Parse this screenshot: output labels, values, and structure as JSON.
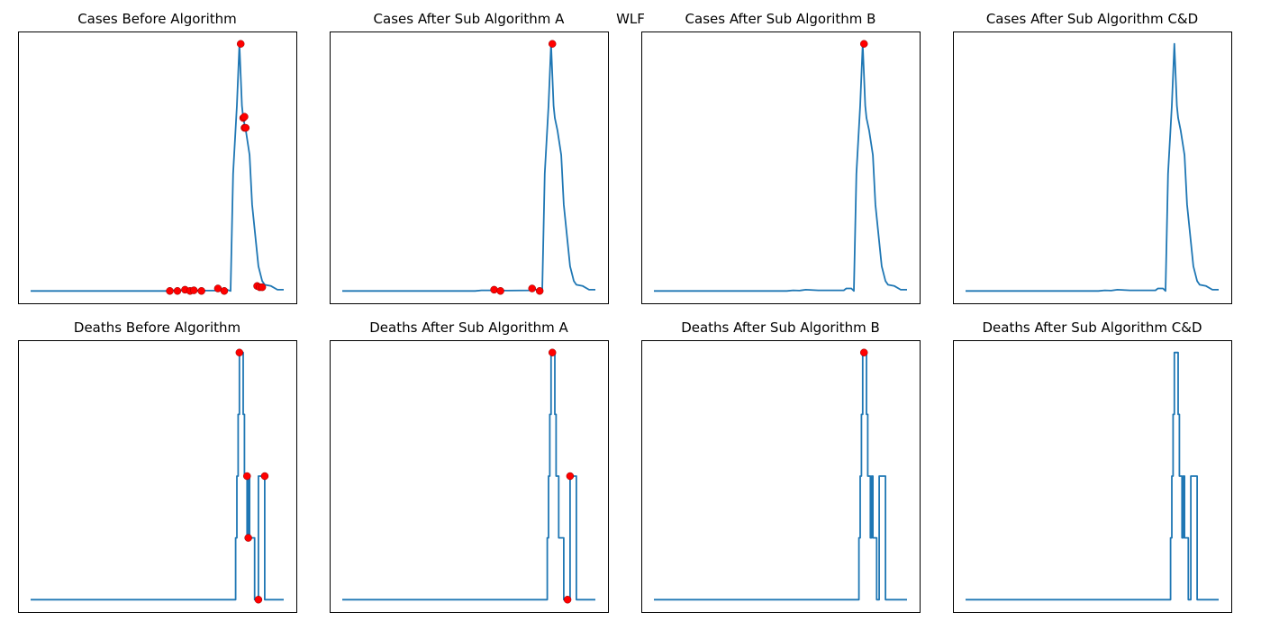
{
  "figure": {
    "suptitle": "WLF"
  },
  "style": {
    "line_color": "#1f77b4",
    "marker_color": "#ff0000",
    "marker_edge": "#8b0000",
    "frame_color": "#000000"
  },
  "chart_data": [
    {
      "type": "line",
      "title": "Cases Before Algorithm",
      "xlabel": "",
      "ylabel": "",
      "xlim": [
        0,
        200
      ],
      "ylim": [
        -10,
        210
      ],
      "grid": false,
      "axis_ticks": false,
      "series": [
        {
          "points": [
            [
              0,
              0
            ],
            [
              80,
              0
            ],
            [
              110,
              0
            ],
            [
              112,
              0.5
            ],
            [
              120,
              0.5
            ],
            [
              125,
              0.3
            ],
            [
              150,
              0.3
            ],
            [
              152,
              1
            ],
            [
              155,
              1
            ],
            [
              158,
              0
            ],
            [
              160,
              95
            ],
            [
              163,
              150
            ],
            [
              165,
              200
            ],
            [
              167,
              150
            ],
            [
              168,
              140
            ],
            [
              170,
              130
            ],
            [
              173,
              110
            ],
            [
              175,
              70
            ],
            [
              178,
              40
            ],
            [
              180,
              20
            ],
            [
              183,
              8
            ],
            [
              185,
              5
            ],
            [
              190,
              4
            ],
            [
              195,
              1
            ],
            [
              200,
              1
            ]
          ]
        }
      ],
      "markers": [
        [
          110,
          0
        ],
        [
          116,
          0
        ],
        [
          122,
          1
        ],
        [
          126,
          0
        ],
        [
          129,
          0.5
        ],
        [
          135,
          0
        ],
        [
          148,
          2
        ],
        [
          153,
          0
        ],
        [
          166,
          200
        ],
        [
          168,
          140
        ],
        [
          169,
          141
        ],
        [
          169,
          132
        ],
        [
          170,
          132
        ],
        [
          179,
          4
        ],
        [
          181,
          3
        ],
        [
          183,
          3
        ]
      ]
    },
    {
      "type": "line",
      "title": "Cases After Sub Algorithm A",
      "xlabel": "",
      "ylabel": "",
      "xlim": [
        0,
        200
      ],
      "ylim": [
        -10,
        210
      ],
      "grid": false,
      "axis_ticks": false,
      "series": [
        {
          "points": [
            [
              0,
              0
            ],
            [
              105,
              0
            ],
            [
              110,
              0.5
            ],
            [
              120,
              0.5
            ],
            [
              130,
              0.3
            ],
            [
              150,
              0.5
            ],
            [
              152,
              1
            ],
            [
              156,
              1
            ],
            [
              158,
              0
            ],
            [
              160,
              95
            ],
            [
              163,
              150
            ],
            [
              165,
              200
            ],
            [
              167,
              150
            ],
            [
              168,
              140
            ],
            [
              170,
              130
            ],
            [
              173,
              110
            ],
            [
              175,
              70
            ],
            [
              178,
              40
            ],
            [
              180,
              20
            ],
            [
              183,
              8
            ],
            [
              185,
              5
            ],
            [
              190,
              4
            ],
            [
              195,
              1
            ],
            [
              200,
              1
            ]
          ]
        }
      ],
      "markers": [
        [
          120,
          1
        ],
        [
          125,
          0
        ],
        [
          150,
          2
        ],
        [
          156,
          0
        ],
        [
          166,
          200
        ]
      ]
    },
    {
      "type": "line",
      "title": "Cases After Sub Algorithm B",
      "xlabel": "",
      "ylabel": "",
      "xlim": [
        0,
        200
      ],
      "ylim": [
        -10,
        210
      ],
      "grid": false,
      "axis_ticks": false,
      "series": [
        {
          "points": [
            [
              0,
              0
            ],
            [
              105,
              0
            ],
            [
              110,
              0.5
            ],
            [
              115,
              0.3
            ],
            [
              120,
              1
            ],
            [
              130,
              0.5
            ],
            [
              140,
              0.5
            ],
            [
              150,
              0.5
            ],
            [
              152,
              2
            ],
            [
              156,
              2
            ],
            [
              158,
              0
            ],
            [
              160,
              95
            ],
            [
              163,
              150
            ],
            [
              165,
              200
            ],
            [
              167,
              150
            ],
            [
              168,
              140
            ],
            [
              170,
              130
            ],
            [
              173,
              110
            ],
            [
              175,
              70
            ],
            [
              178,
              40
            ],
            [
              180,
              20
            ],
            [
              183,
              8
            ],
            [
              185,
              5
            ],
            [
              190,
              4
            ],
            [
              195,
              1
            ],
            [
              200,
              1
            ]
          ]
        }
      ],
      "markers": [
        [
          166,
          200
        ]
      ]
    },
    {
      "type": "line",
      "title": "Cases After Sub Algorithm C&D",
      "xlabel": "",
      "ylabel": "",
      "xlim": [
        0,
        200
      ],
      "ylim": [
        -10,
        210
      ],
      "grid": false,
      "axis_ticks": false,
      "series": [
        {
          "points": [
            [
              0,
              0
            ],
            [
              105,
              0
            ],
            [
              110,
              0.5
            ],
            [
              115,
              0.3
            ],
            [
              120,
              1
            ],
            [
              130,
              0.5
            ],
            [
              140,
              0.5
            ],
            [
              150,
              0.5
            ],
            [
              152,
              2
            ],
            [
              156,
              2
            ],
            [
              158,
              0
            ],
            [
              160,
              95
            ],
            [
              163,
              150
            ],
            [
              165,
              200
            ],
            [
              167,
              150
            ],
            [
              168,
              140
            ],
            [
              170,
              130
            ],
            [
              173,
              110
            ],
            [
              175,
              70
            ],
            [
              178,
              40
            ],
            [
              180,
              20
            ],
            [
              183,
              8
            ],
            [
              185,
              5
            ],
            [
              190,
              4
            ],
            [
              195,
              1
            ],
            [
              200,
              1
            ]
          ]
        }
      ],
      "markers": []
    },
    {
      "type": "line",
      "title": "Deaths Before Algorithm",
      "xlabel": "",
      "ylabel": "",
      "xlim": [
        0,
        200
      ],
      "ylim": [
        -0.2,
        4.2
      ],
      "grid": false,
      "axis_ticks": false,
      "series": [
        {
          "points": [
            [
              0,
              0
            ],
            [
              162,
              0
            ],
            [
              162,
              1
            ],
            [
              163,
              1
            ],
            [
              163,
              2
            ],
            [
              164,
              2
            ],
            [
              164,
              3
            ],
            [
              165,
              3
            ],
            [
              165,
              4
            ],
            [
              168,
              4
            ],
            [
              168,
              3
            ],
            [
              169,
              3
            ],
            [
              169,
              2
            ],
            [
              171,
              2
            ],
            [
              171,
              1
            ],
            [
              172,
              1
            ],
            [
              172,
              2
            ],
            [
              173,
              2
            ],
            [
              173,
              1
            ],
            [
              177,
              1
            ],
            [
              177,
              0
            ],
            [
              180,
              0
            ],
            [
              180,
              2
            ],
            [
              185,
              2
            ],
            [
              185,
              0
            ],
            [
              200,
              0
            ]
          ]
        }
      ],
      "markers": [
        [
          165,
          4
        ],
        [
          171,
          2
        ],
        [
          172,
          1
        ],
        [
          180,
          0
        ],
        [
          185,
          2
        ]
      ]
    },
    {
      "type": "line",
      "title": "Deaths After Sub Algorithm A",
      "xlabel": "",
      "ylabel": "",
      "xlim": [
        0,
        200
      ],
      "ylim": [
        -0.2,
        4.2
      ],
      "grid": false,
      "axis_ticks": false,
      "series": [
        {
          "points": [
            [
              0,
              0
            ],
            [
              162,
              0
            ],
            [
              162,
              1
            ],
            [
              163,
              1
            ],
            [
              163,
              2
            ],
            [
              164,
              2
            ],
            [
              164,
              3
            ],
            [
              165,
              3
            ],
            [
              165,
              4
            ],
            [
              168,
              4
            ],
            [
              168,
              3
            ],
            [
              169,
              3
            ],
            [
              169,
              2
            ],
            [
              171,
              2
            ],
            [
              171,
              1
            ],
            [
              172,
              1
            ],
            [
              172,
              1
            ],
            [
              173,
              1
            ],
            [
              175,
              1
            ],
            [
              175,
              0
            ],
            [
              180,
              0
            ],
            [
              180,
              2
            ],
            [
              185,
              2
            ],
            [
              185,
              0
            ],
            [
              200,
              0
            ]
          ]
        }
      ],
      "markers": [
        [
          166,
          4
        ],
        [
          178,
          0
        ],
        [
          180,
          2
        ]
      ]
    },
    {
      "type": "line",
      "title": "Deaths After Sub Algorithm B",
      "xlabel": "",
      "ylabel": "",
      "xlim": [
        0,
        200
      ],
      "ylim": [
        -0.2,
        4.2
      ],
      "grid": false,
      "axis_ticks": false,
      "series": [
        {
          "points": [
            [
              0,
              0
            ],
            [
              162,
              0
            ],
            [
              162,
              1
            ],
            [
              163,
              1
            ],
            [
              163,
              2
            ],
            [
              164,
              2
            ],
            [
              164,
              3
            ],
            [
              165,
              3
            ],
            [
              165,
              4
            ],
            [
              168,
              4
            ],
            [
              168,
              3
            ],
            [
              169,
              3
            ],
            [
              169,
              2
            ],
            [
              171,
              2
            ],
            [
              171,
              1
            ],
            [
              172,
              1
            ],
            [
              172,
              2
            ],
            [
              173,
              2
            ],
            [
              173,
              1
            ],
            [
              176,
              1
            ],
            [
              176,
              0
            ],
            [
              178,
              0
            ],
            [
              178,
              2
            ],
            [
              183,
              2
            ],
            [
              183,
              0
            ],
            [
              200,
              0
            ]
          ]
        }
      ],
      "markers": [
        [
          166,
          4
        ]
      ]
    },
    {
      "type": "line",
      "title": "Deaths After Sub Algorithm C&D",
      "xlabel": "",
      "ylabel": "",
      "xlim": [
        0,
        200
      ],
      "ylim": [
        -0.2,
        4.2
      ],
      "grid": false,
      "axis_ticks": false,
      "series": [
        {
          "points": [
            [
              0,
              0
            ],
            [
              162,
              0
            ],
            [
              162,
              1
            ],
            [
              163,
              1
            ],
            [
              163,
              2
            ],
            [
              164,
              2
            ],
            [
              164,
              3
            ],
            [
              165,
              3
            ],
            [
              165,
              4
            ],
            [
              168,
              4
            ],
            [
              168,
              3
            ],
            [
              169,
              3
            ],
            [
              169,
              2
            ],
            [
              171,
              2
            ],
            [
              171,
              1
            ],
            [
              172,
              1
            ],
            [
              172,
              2
            ],
            [
              173,
              2
            ],
            [
              173,
              1
            ],
            [
              176,
              1
            ],
            [
              176,
              0
            ],
            [
              178,
              0
            ],
            [
              178,
              2
            ],
            [
              183,
              2
            ],
            [
              183,
              0
            ],
            [
              200,
              0
            ]
          ]
        }
      ],
      "markers": []
    }
  ]
}
